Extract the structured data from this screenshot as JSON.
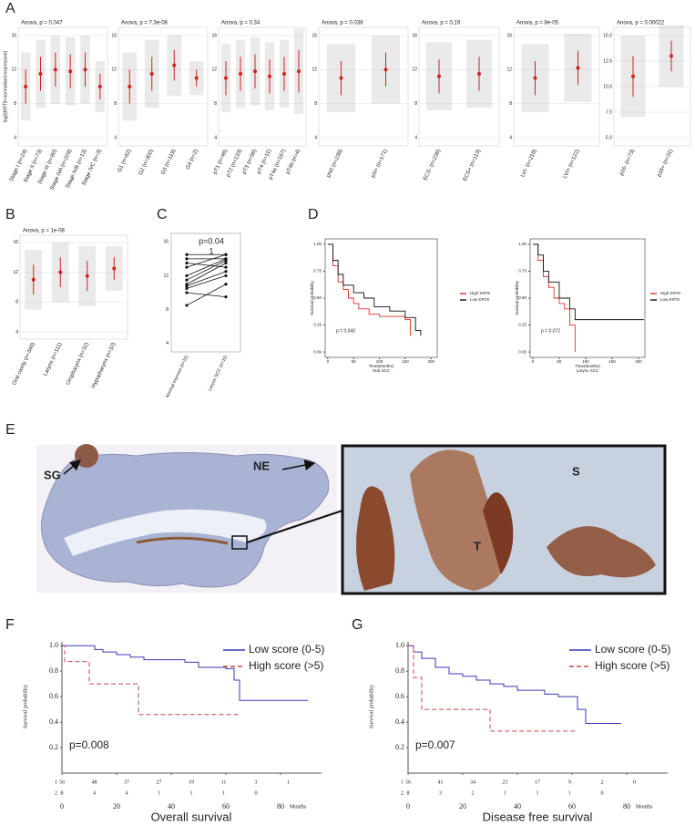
{
  "A": {
    "letter": "A",
    "y_label": "log2(KRT8+normalised expression)",
    "plots": [
      {
        "title": "Anova, p = 0.047",
        "yticks": [
          4,
          8,
          12,
          16
        ],
        "groups": [
          {
            "label": "Stage I (n=24)",
            "mean": 10,
            "sd": 2
          },
          {
            "label": "Stage II (n=73)",
            "mean": 11.5,
            "sd": 2
          },
          {
            "label": "Stage III (n=80)",
            "mean": 12,
            "sd": 2
          },
          {
            "label": "Stage IVA (n=209)",
            "mean": 11.8,
            "sd": 2
          },
          {
            "label": "Stage IVB (n=13)",
            "mean": 12,
            "sd": 2
          },
          {
            "label": "Stage IVC (n=3)",
            "mean": 10,
            "sd": 1.5
          }
        ]
      },
      {
        "title": "Anova, p = 7.3e-08",
        "yticks": [
          4,
          8,
          12,
          16
        ],
        "groups": [
          {
            "label": "G1 (n=62)",
            "mean": 10,
            "sd": 2
          },
          {
            "label": "G2 (n=300)",
            "mean": 11.5,
            "sd": 2
          },
          {
            "label": "G3 (n=119)",
            "mean": 12.5,
            "sd": 1.8
          },
          {
            "label": "G4 (n=2)",
            "mean": 11,
            "sd": 1
          }
        ]
      },
      {
        "title": "Anova, p = 0.34",
        "yticks": [
          4,
          8,
          12,
          16
        ],
        "groups": [
          {
            "label": "pT1 (n=46)",
            "mean": 11,
            "sd": 2
          },
          {
            "label": "pT2 (n=133)",
            "mean": 11.5,
            "sd": 2
          },
          {
            "label": "pT3 (n=96)",
            "mean": 11.8,
            "sd": 2
          },
          {
            "label": "pT4 (n=11)",
            "mean": 11.2,
            "sd": 2
          },
          {
            "label": "pT4a (n=167)",
            "mean": 11.5,
            "sd": 2
          },
          {
            "label": "pT4b (n=4)",
            "mean": 11.8,
            "sd": 2.5
          }
        ]
      },
      {
        "title": "Anova, p = 0.038",
        "yticks": [
          4,
          8,
          12,
          16
        ],
        "groups": [
          {
            "label": "pN0 (n=238)",
            "mean": 11,
            "sd": 2
          },
          {
            "label": "pN+ (n=171)",
            "mean": 12,
            "sd": 2
          }
        ]
      },
      {
        "title": "Anova, p = 0.19",
        "yticks": [
          4,
          8,
          12,
          16
        ],
        "groups": [
          {
            "label": "ECS- (n=236)",
            "mean": 11.2,
            "sd": 2
          },
          {
            "label": "ECS+ (n=113)",
            "mean": 11.5,
            "sd": 2
          }
        ]
      },
      {
        "title": "Anova, p = 8e-05",
        "yticks": [
          4,
          8,
          12,
          16
        ],
        "groups": [
          {
            "label": "LVI- (n=218)",
            "mean": 11,
            "sd": 2
          },
          {
            "label": "LVI+ (n=122)",
            "mean": 12.2,
            "sd": 2
          }
        ]
      },
      {
        "title": "Anova, p = 0.00022",
        "yticks": [
          {
            "value": 5,
            "label": "5.0"
          },
          7.5,
          {
            "value": 10,
            "label": "10.0"
          },
          12.5,
          {
            "value": 15,
            "label": "15.0"
          }
        ],
        "groups": [
          {
            "label": "p16- (n=73)",
            "mean": 11,
            "sd": 2
          },
          {
            "label": "p16+ (n=31)",
            "mean": 13,
            "sd": 1.5
          }
        ]
      }
    ]
  },
  "B": {
    "letter": "B",
    "title": "Anova, p = 1e-08",
    "yticks": [
      4,
      8,
      12,
      16
    ],
    "groups": [
      {
        "label": "Oral cavity (n=349)",
        "mean": 11,
        "sd": 2
      },
      {
        "label": "Larynx (n=111)",
        "mean": 12,
        "sd": 2
      },
      {
        "label": "Oropharynx (n=32)",
        "mean": 11.5,
        "sd": 2
      },
      {
        "label": "Hypopharynx (n=10)",
        "mean": 12.5,
        "sd": 1.5
      }
    ]
  },
  "C": {
    "letter": "C",
    "p_label": "p=0.04",
    "mark": "1",
    "yticks": [
      4,
      8,
      12,
      16
    ],
    "categories": [
      "Normal mucosa (n=11)",
      "Larynx SCC (n=11)"
    ],
    "normal": [
      14.5,
      14,
      13.5,
      13,
      12,
      11.5,
      11,
      10.8,
      10.5,
      10,
      8.5
    ],
    "larynx": [
      14.5,
      14,
      13,
      14.5,
      14,
      13.8,
      13.5,
      12.5,
      12,
      9.5,
      11
    ]
  },
  "D": {
    "letter": "D",
    "plots": [
      {
        "y_label": "Survival probability",
        "x_label": "Time(Months)",
        "x_sublabel": "Oral SCC",
        "p_label": "p = 0.040",
        "xticks": [
          0,
          50,
          100,
          150,
          200
        ],
        "yticks": [
          "0.00",
          "0.25",
          "0.50",
          "0.75",
          "1.00"
        ],
        "series": [
          {
            "name": "High KRT8",
            "color": "#e0302a",
            "x": [
              0,
              10,
              20,
              30,
              40,
              50,
              60,
              80,
              100,
              120,
              150,
              160
            ],
            "y": [
              1,
              0.8,
              0.65,
              0.58,
              0.5,
              0.45,
              0.4,
              0.35,
              0.33,
              0.33,
              0.3,
              0.15
            ]
          },
          {
            "name": "Low KRT8",
            "color": "#111111",
            "x": [
              0,
              10,
              20,
              30,
              50,
              70,
              90,
              120,
              150,
              170,
              180
            ],
            "y": [
              1,
              0.85,
              0.72,
              0.62,
              0.55,
              0.5,
              0.42,
              0.38,
              0.32,
              0.2,
              0.15
            ]
          }
        ]
      },
      {
        "y_label": "Survival probability",
        "x_label": "Time(Months)",
        "x_sublabel": "Larynx SCC",
        "p_label": "p = 0.072",
        "xticks": [
          0,
          50,
          100,
          150,
          200
        ],
        "yticks": [
          "0.00",
          "0.25",
          "0.50",
          "0.75",
          "1.00"
        ],
        "series": [
          {
            "name": "High KRT8",
            "color": "#e0302a",
            "x": [
              0,
              10,
              20,
              30,
              40,
              50,
              60,
              70,
              80
            ],
            "y": [
              1,
              0.85,
              0.7,
              0.6,
              0.5,
              0.45,
              0.4,
              0.25,
              0
            ]
          },
          {
            "name": "Low KRT8",
            "color": "#111111",
            "x": [
              0,
              10,
              20,
              30,
              50,
              70,
              80,
              210
            ],
            "y": [
              1,
              0.9,
              0.75,
              0.65,
              0.5,
              0.4,
              0.3,
              0.3
            ]
          }
        ]
      }
    ]
  },
  "E": {
    "letter": "E",
    "labels": [
      "SG",
      "NE",
      "S",
      "T"
    ]
  },
  "F": {
    "letter": "F",
    "title": "Overall survival",
    "y_label": "Survival probability",
    "p_label": "p=0.008",
    "xticks": [
      0,
      20,
      40,
      60,
      80
    ],
    "x_unit": "Months",
    "yticks": [
      0.2,
      0.4,
      0.6,
      0.8,
      {
        "value": 1,
        "label": "1.0"
      }
    ],
    "series": [
      {
        "name": "Low score (0-5)",
        "color": "#3a3ab8",
        "dash": false,
        "x": [
          0,
          10,
          12,
          15,
          20,
          25,
          30,
          45,
          50,
          60,
          63,
          65,
          90
        ],
        "y": [
          1,
          1,
          0.97,
          0.95,
          0.93,
          0.91,
          0.89,
          0.87,
          0.83,
          0.82,
          0.73,
          0.57,
          0.57
        ]
      },
      {
        "name": "High score (>5)",
        "color": "#c8464a",
        "dash": true,
        "x": [
          0,
          1,
          10,
          28,
          65
        ],
        "y": [
          1,
          0.875,
          0.7,
          0.46,
          0.46
        ]
      }
    ],
    "risk": [
      {
        "row": "1",
        "values": [
          56,
          48,
          37,
          27,
          19,
          11,
          3,
          1
        ]
      },
      {
        "row": "2",
        "values": [
          8,
          4,
          4,
          1,
          1,
          1,
          0
        ]
      }
    ]
  },
  "G": {
    "letter": "G",
    "title": "Disease free survival",
    "y_label": "Survival probability",
    "p_label": "p=0.007",
    "xticks": [
      0,
      20,
      40,
      60,
      80
    ],
    "x_unit": "Months",
    "yticks": [
      0.2,
      0.4,
      0.6,
      0.8,
      {
        "value": 1,
        "label": "1.0"
      }
    ],
    "series": [
      {
        "name": "Low score (0-5)",
        "color": "#3a3ab8",
        "dash": false,
        "x": [
          0,
          2,
          5,
          10,
          15,
          20,
          25,
          30,
          35,
          40,
          50,
          55,
          62,
          65,
          78
        ],
        "y": [
          1,
          0.95,
          0.9,
          0.83,
          0.78,
          0.76,
          0.73,
          0.7,
          0.68,
          0.65,
          0.62,
          0.6,
          0.5,
          0.39,
          0.39
        ]
      },
      {
        "name": "High score (>5)",
        "color": "#c8464a",
        "dash": true,
        "x": [
          0,
          2,
          5,
          30,
          62
        ],
        "y": [
          1,
          0.75,
          0.5,
          0.33,
          0.33
        ]
      }
    ],
    "risk": [
      {
        "row": "1",
        "values": [
          56,
          41,
          34,
          23,
          17,
          9,
          2,
          0
        ]
      },
      {
        "row": "2",
        "values": [
          8,
          3,
          2,
          1,
          1,
          1,
          0
        ]
      }
    ]
  }
}
